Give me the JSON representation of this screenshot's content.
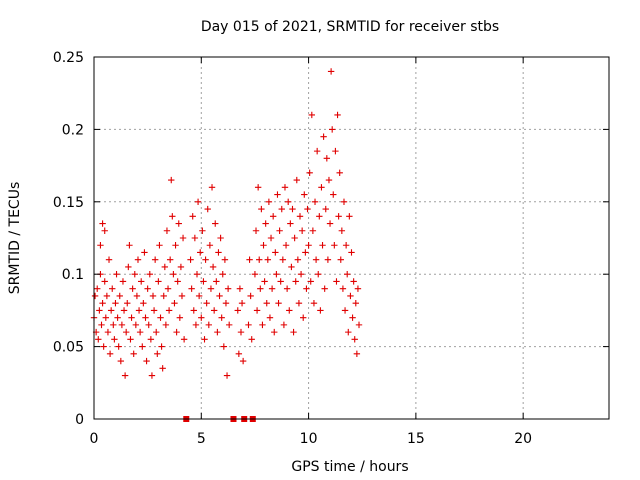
{
  "chart_data": {
    "type": "scatter",
    "title": "Day 015 of 2021, SRMTID for receiver stbs",
    "xlabel": "GPS time / hours",
    "ylabel": "SRMTID / TECUs",
    "xlim": [
      0,
      24
    ],
    "ylim": [
      0,
      0.25
    ],
    "x_ticks": [
      0,
      5,
      10,
      15,
      20
    ],
    "y_ticks": [
      0,
      0.05,
      0.1,
      0.15,
      0.2,
      0.25
    ],
    "x_tick_labels": [
      "0",
      "5",
      "10",
      "15",
      "20"
    ],
    "y_tick_labels": [
      "0",
      "0.05",
      "0.1",
      "0.15",
      "0.2",
      "0.25"
    ],
    "grid": true,
    "marker": "plus",
    "color": "#e00000",
    "gap_markers_x": [
      4.3,
      6.5,
      7.0,
      7.4
    ],
    "series": [
      {
        "points": [
          [
            0.0,
            0.07
          ],
          [
            0.05,
            0.085
          ],
          [
            0.1,
            0.06
          ],
          [
            0.15,
            0.09
          ],
          [
            0.2,
            0.055
          ],
          [
            0.25,
            0.075
          ],
          [
            0.3,
            0.1
          ],
          [
            0.3,
            0.12
          ],
          [
            0.35,
            0.065
          ],
          [
            0.4,
            0.135
          ],
          [
            0.4,
            0.08
          ],
          [
            0.45,
            0.05
          ],
          [
            0.5,
            0.095
          ],
          [
            0.5,
            0.13
          ],
          [
            0.55,
            0.07
          ],
          [
            0.6,
            0.085
          ],
          [
            0.65,
            0.06
          ],
          [
            0.7,
            0.11
          ],
          [
            0.75,
            0.045
          ],
          [
            0.8,
            0.075
          ],
          [
            0.85,
            0.09
          ],
          [
            0.9,
            0.065
          ],
          [
            0.95,
            0.055
          ],
          [
            1.0,
            0.08
          ],
          [
            1.05,
            0.1
          ],
          [
            1.1,
            0.07
          ],
          [
            1.15,
            0.05
          ],
          [
            1.2,
            0.085
          ],
          [
            1.25,
            0.04
          ],
          [
            1.3,
            0.065
          ],
          [
            1.35,
            0.095
          ],
          [
            1.4,
            0.075
          ],
          [
            1.45,
            0.03
          ],
          [
            1.5,
            0.06
          ],
          [
            1.55,
            0.08
          ],
          [
            1.6,
            0.105
          ],
          [
            1.65,
            0.12
          ],
          [
            1.7,
            0.055
          ],
          [
            1.75,
            0.07
          ],
          [
            1.8,
            0.09
          ],
          [
            1.85,
            0.045
          ],
          [
            1.9,
            0.1
          ],
          [
            1.95,
            0.065
          ],
          [
            2.0,
            0.085
          ],
          [
            2.05,
            0.11
          ],
          [
            2.1,
            0.075
          ],
          [
            2.15,
            0.06
          ],
          [
            2.2,
            0.095
          ],
          [
            2.25,
            0.05
          ],
          [
            2.3,
            0.08
          ],
          [
            2.35,
            0.115
          ],
          [
            2.4,
            0.07
          ],
          [
            2.45,
            0.04
          ],
          [
            2.5,
            0.09
          ],
          [
            2.55,
            0.065
          ],
          [
            2.6,
            0.1
          ],
          [
            2.65,
            0.055
          ],
          [
            2.7,
            0.03
          ],
          [
            2.75,
            0.085
          ],
          [
            2.8,
            0.075
          ],
          [
            2.85,
            0.11
          ],
          [
            2.9,
            0.06
          ],
          [
            2.95,
            0.045
          ],
          [
            3.0,
            0.095
          ],
          [
            3.05,
            0.12
          ],
          [
            3.1,
            0.07
          ],
          [
            3.15,
            0.05
          ],
          [
            3.2,
            0.035
          ],
          [
            3.25,
            0.085
          ],
          [
            3.3,
            0.105
          ],
          [
            3.35,
            0.065
          ],
          [
            3.4,
            0.13
          ],
          [
            3.45,
            0.09
          ],
          [
            3.5,
            0.075
          ],
          [
            3.55,
            0.11
          ],
          [
            3.6,
            0.165
          ],
          [
            3.65,
            0.14
          ],
          [
            3.7,
            0.1
          ],
          [
            3.75,
            0.08
          ],
          [
            3.8,
            0.12
          ],
          [
            3.85,
            0.06
          ],
          [
            3.9,
            0.095
          ],
          [
            3.95,
            0.135
          ],
          [
            4.0,
            0.07
          ],
          [
            4.05,
            0.105
          ],
          [
            4.1,
            0.085
          ],
          [
            4.15,
            0.125
          ],
          [
            4.2,
            0.055
          ],
          [
            4.5,
            0.11
          ],
          [
            4.55,
            0.09
          ],
          [
            4.6,
            0.14
          ],
          [
            4.65,
            0.075
          ],
          [
            4.7,
            0.125
          ],
          [
            4.75,
            0.065
          ],
          [
            4.8,
            0.1
          ],
          [
            4.85,
            0.15
          ],
          [
            4.9,
            0.085
          ],
          [
            4.95,
            0.115
          ],
          [
            5.0,
            0.07
          ],
          [
            5.05,
            0.13
          ],
          [
            5.1,
            0.095
          ],
          [
            5.15,
            0.055
          ],
          [
            5.2,
            0.11
          ],
          [
            5.25,
            0.08
          ],
          [
            5.3,
            0.145
          ],
          [
            5.35,
            0.065
          ],
          [
            5.4,
            0.12
          ],
          [
            5.45,
            0.09
          ],
          [
            5.5,
            0.16
          ],
          [
            5.55,
            0.105
          ],
          [
            5.6,
            0.075
          ],
          [
            5.65,
            0.135
          ],
          [
            5.7,
            0.095
          ],
          [
            5.75,
            0.06
          ],
          [
            5.8,
            0.115
          ],
          [
            5.85,
            0.085
          ],
          [
            5.9,
            0.125
          ],
          [
            5.95,
            0.07
          ],
          [
            6.0,
            0.1
          ],
          [
            6.05,
            0.05
          ],
          [
            6.1,
            0.11
          ],
          [
            6.15,
            0.08
          ],
          [
            6.2,
            0.03
          ],
          [
            6.25,
            0.09
          ],
          [
            6.3,
            0.065
          ],
          [
            6.7,
            0.075
          ],
          [
            6.75,
            0.045
          ],
          [
            6.8,
            0.09
          ],
          [
            6.85,
            0.06
          ],
          [
            6.9,
            0.08
          ],
          [
            6.95,
            0.04
          ],
          [
            7.2,
            0.065
          ],
          [
            7.25,
            0.11
          ],
          [
            7.3,
            0.085
          ],
          [
            7.35,
            0.055
          ],
          [
            7.5,
            0.1
          ],
          [
            7.55,
            0.13
          ],
          [
            7.6,
            0.075
          ],
          [
            7.65,
            0.16
          ],
          [
            7.7,
            0.11
          ],
          [
            7.75,
            0.09
          ],
          [
            7.8,
            0.145
          ],
          [
            7.85,
            0.065
          ],
          [
            7.9,
            0.12
          ],
          [
            7.95,
            0.095
          ],
          [
            8.0,
            0.135
          ],
          [
            8.05,
            0.08
          ],
          [
            8.1,
            0.11
          ],
          [
            8.15,
            0.15
          ],
          [
            8.2,
            0.07
          ],
          [
            8.25,
            0.125
          ],
          [
            8.3,
            0.09
          ],
          [
            8.35,
            0.14
          ],
          [
            8.4,
            0.06
          ],
          [
            8.45,
            0.115
          ],
          [
            8.5,
            0.1
          ],
          [
            8.55,
            0.155
          ],
          [
            8.6,
            0.08
          ],
          [
            8.65,
            0.13
          ],
          [
            8.7,
            0.095
          ],
          [
            8.75,
            0.145
          ],
          [
            8.8,
            0.11
          ],
          [
            8.85,
            0.065
          ],
          [
            8.9,
            0.16
          ],
          [
            8.95,
            0.12
          ],
          [
            9.0,
            0.09
          ],
          [
            9.05,
            0.15
          ],
          [
            9.1,
            0.075
          ],
          [
            9.15,
            0.135
          ],
          [
            9.2,
            0.105
          ],
          [
            9.25,
            0.145
          ],
          [
            9.3,
            0.06
          ],
          [
            9.35,
            0.125
          ],
          [
            9.4,
            0.095
          ],
          [
            9.45,
            0.165
          ],
          [
            9.5,
            0.11
          ],
          [
            9.55,
            0.08
          ],
          [
            9.6,
            0.14
          ],
          [
            9.65,
            0.1
          ],
          [
            9.7,
            0.13
          ],
          [
            9.75,
            0.07
          ],
          [
            9.8,
            0.155
          ],
          [
            9.85,
            0.115
          ],
          [
            9.9,
            0.09
          ],
          [
            9.95,
            0.145
          ],
          [
            10.0,
            0.12
          ],
          [
            10.05,
            0.17
          ],
          [
            10.1,
            0.095
          ],
          [
            10.15,
            0.21
          ],
          [
            10.2,
            0.13
          ],
          [
            10.25,
            0.08
          ],
          [
            10.3,
            0.15
          ],
          [
            10.35,
            0.11
          ],
          [
            10.4,
            0.185
          ],
          [
            10.45,
            0.1
          ],
          [
            10.5,
            0.14
          ],
          [
            10.55,
            0.075
          ],
          [
            10.6,
            0.16
          ],
          [
            10.65,
            0.12
          ],
          [
            10.7,
            0.195
          ],
          [
            10.75,
            0.09
          ],
          [
            10.8,
            0.145
          ],
          [
            10.85,
            0.18
          ],
          [
            10.9,
            0.11
          ],
          [
            10.95,
            0.165
          ],
          [
            11.0,
            0.135
          ],
          [
            11.05,
            0.24
          ],
          [
            11.1,
            0.2
          ],
          [
            11.15,
            0.155
          ],
          [
            11.2,
            0.12
          ],
          [
            11.25,
            0.185
          ],
          [
            11.3,
            0.095
          ],
          [
            11.35,
            0.21
          ],
          [
            11.4,
            0.14
          ],
          [
            11.45,
            0.17
          ],
          [
            11.5,
            0.11
          ],
          [
            11.55,
            0.13
          ],
          [
            11.6,
            0.09
          ],
          [
            11.65,
            0.15
          ],
          [
            11.7,
            0.075
          ],
          [
            11.75,
            0.12
          ],
          [
            11.8,
            0.1
          ],
          [
            11.85,
            0.06
          ],
          [
            11.9,
            0.14
          ],
          [
            11.95,
            0.085
          ],
          [
            12.0,
            0.115
          ],
          [
            12.05,
            0.07
          ],
          [
            12.1,
            0.095
          ],
          [
            12.15,
            0.055
          ],
          [
            12.2,
            0.08
          ],
          [
            12.25,
            0.045
          ],
          [
            12.3,
            0.09
          ],
          [
            12.35,
            0.065
          ]
        ]
      }
    ]
  }
}
